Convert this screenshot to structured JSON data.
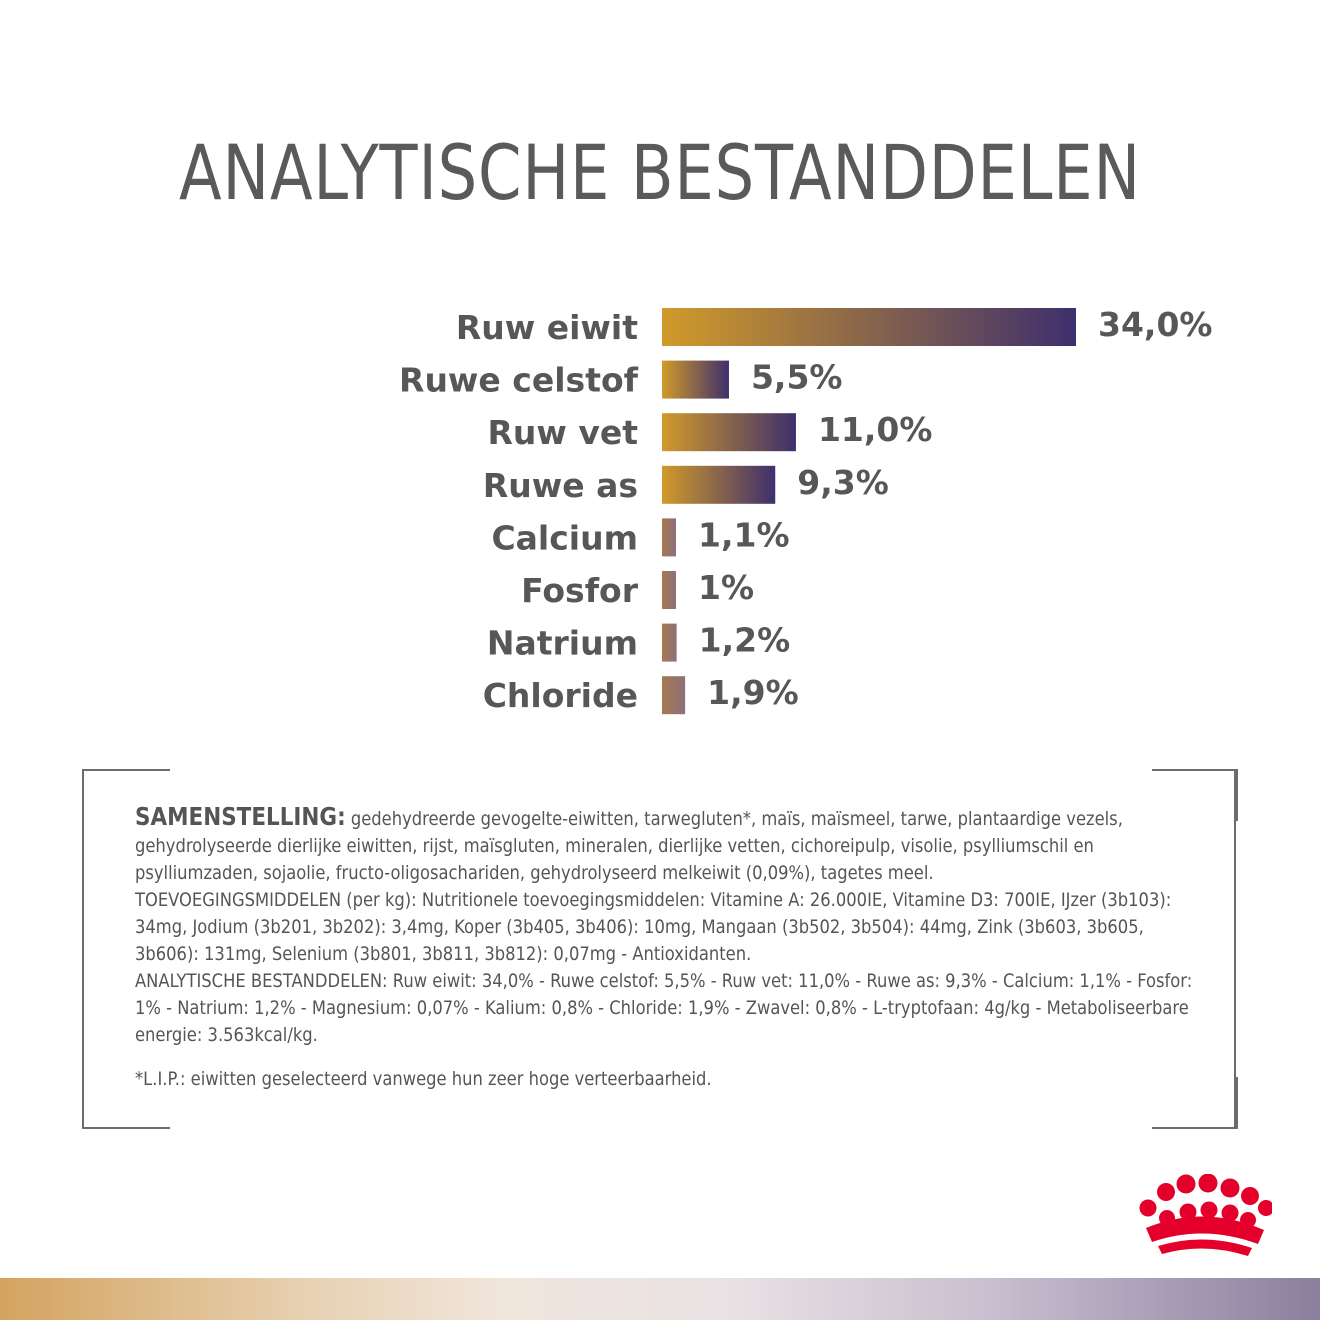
{
  "title": "ANALYTISCHE BESTANDDELEN",
  "colors": {
    "gradient_start": "#d19a2a",
    "gradient_end": "#3e2f6d",
    "small_bar_start": "#a77950",
    "small_bar_end": "#8c6f7a",
    "text": "#575757",
    "logo_red": "#e4002b"
  },
  "chart_data": {
    "type": "bar",
    "orientation": "horizontal",
    "title": "ANALYTISCHE BESTANDDELEN",
    "categories": [
      "Ruw eiwit",
      "Ruwe celstof",
      "Ruw vet",
      "Ruwe as",
      "Calcium",
      "Fosfor",
      "Natrium",
      "Chloride"
    ],
    "values": [
      34.0,
      5.5,
      11.0,
      9.3,
      1.1,
      1.0,
      1.2,
      1.9
    ],
    "value_labels": [
      "34,0%",
      "5,5%",
      "11,0%",
      "9,3%",
      "1,1%",
      "1%",
      "1,2%",
      "1,9%"
    ],
    "xlim": [
      0,
      34.0
    ],
    "unit": "%",
    "grid": false,
    "legend": "none"
  },
  "composition": {
    "heading": "SAMENSTELLING:",
    "ingredients": " gedehydreerde gevogelte-eiwitten, tarwegluten*, maïs, maïsmeel, tarwe, plantaardige vezels, gehydrolyseerde dierlijke eiwitten, rijst, maïsgluten, mineralen, dierlijke vetten, cichoreipulp, visolie, psylliumschil en psylliumzaden, sojaolie, fructo-oligosachariden, gehydrolyseerd melkeiwit (0,09%), tagetes meel.",
    "additives": "TOEVOEGINGSMIDDELEN (per kg): Nutritionele toevoegingsmiddelen: Vitamine A: 26.000IE, Vitamine D3: 700IE, IJzer (3b103): 34mg, Jodium (3b201, 3b202): 3,4mg, Koper (3b405, 3b406): 10mg, Mangaan (3b502, 3b504): 44mg, Zink (3b603, 3b605, 3b606): 131mg, Selenium (3b801, 3b811, 3b812): 0,07mg - Antioxidanten.",
    "analysis": "ANALYTISCHE BESTANDDELEN: Ruw eiwit: 34,0% - Ruwe celstof: 5,5% - Ruw vet: 11,0% - Ruwe as: 9,3% - Calcium: 1,1% - Fosfor: 1% - Natrium: 1,2% - Magnesium: 0,07% - Kalium: 0,8% - Chloride: 1,9% - Zwavel: 0,8% - L-tryptofaan: 4g/kg - Metaboliseerbare energie: 3.563kcal/kg.",
    "footnote": "*L.I.P.: eiwitten geselecteerd vanwege hun zeer hoge verteerbaarheid."
  },
  "logo": {
    "icon": "royal-canin-crown-icon"
  }
}
